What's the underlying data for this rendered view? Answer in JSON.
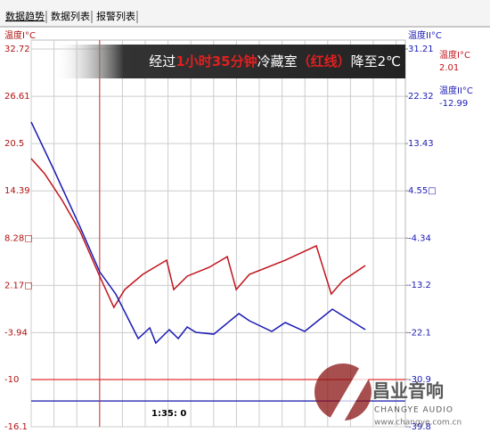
{
  "tabs": [
    "数据趋势",
    "数据列表",
    "报警列表"
  ],
  "chart_data": {
    "type": "line",
    "title_parts": [
      "经过",
      "1小时35分钟",
      "冷藏室",
      "（红线）",
      "降至2℃"
    ],
    "ylabel": "温度I°C",
    "y2label": "温度II°C",
    "xlim": [
      0,
      100
    ],
    "ylim": [
      -16.1,
      32.72
    ],
    "yticks": [
      32.72,
      26.61,
      20.5,
      14.39,
      {
        "value": 8.28,
        "label": "8.28□"
      },
      {
        "value": 2.17,
        "label": "2.17□"
      },
      -3.94,
      -10.0,
      -16.1
    ],
    "y2lim": [
      -39.8,
      31.21
    ],
    "y2ticks": [
      31.21,
      22.32,
      13.43,
      {
        "value": 4.55,
        "label": "4.55□"
      },
      -4.34,
      -13.2,
      -22.1,
      -30.9,
      -39.8
    ],
    "grid": true,
    "series": [
      {
        "name": "温度I°C",
        "color": "#c0141c",
        "current": "2.01",
        "x": [
          0,
          3.6,
          8.3,
          13.1,
          18.3,
          22.1,
          25,
          29.8,
          36.2,
          38.1,
          41.7,
          47.6,
          52.4,
          54.8,
          58.3,
          67.9,
          76.2,
          80.2,
          83.3,
          89.3
        ],
        "values": [
          18.56,
          16.6,
          13.15,
          9.12,
          3.36,
          -0.67,
          1.63,
          3.59,
          5.43,
          1.63,
          3.36,
          4.51,
          5.89,
          1.63,
          3.59,
          5.43,
          7.28,
          1.06,
          2.79,
          4.74
        ]
      },
      {
        "name": "温度II°C",
        "color": "#1a1ab4",
        "axis": "y2",
        "current": "-12.99",
        "x": [
          0,
          6,
          13.1,
          18.3,
          22.6,
          28.6,
          31.7,
          33.3,
          36.9,
          39.3,
          41.7,
          44,
          48.8,
          55.5,
          58.3,
          64.3,
          67.9,
          73.1,
          80.5,
          89.3
        ],
        "values": [
          17.48,
          8.6,
          -2.29,
          -10.66,
          -14.85,
          -23.22,
          -21.21,
          -24.06,
          -21.55,
          -23.22,
          -21.04,
          -22.05,
          -22.39,
          -18.53,
          -19.87,
          -21.88,
          -20.21,
          -21.88,
          -17.7,
          -21.55
        ]
      }
    ],
    "alarm_lines": [
      {
        "value": -10.0,
        "color": "#e03030"
      },
      {
        "value": -34.95,
        "color": "#2a2ab4",
        "axis": "y2"
      }
    ],
    "marker": {
      "x": 18.3,
      "label": "1:35: 0"
    }
  },
  "watermark": {
    "brand": "昌业音响",
    "english": "CHANGYE AUDIO",
    "url": "www.changye.com.cn"
  }
}
